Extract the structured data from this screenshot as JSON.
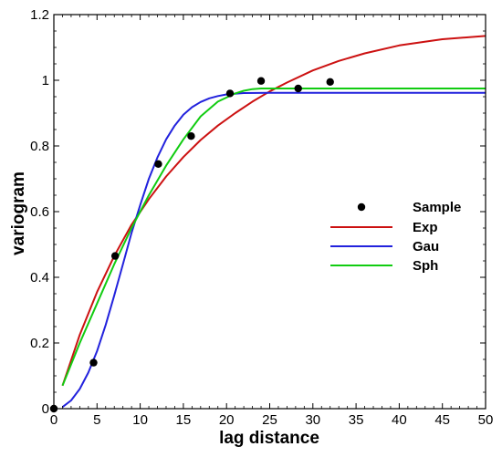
{
  "colors": {
    "Exp": "#cc1111",
    "Gau": "#2222dd",
    "Sph": "#11cc11",
    "Sample": "#000000"
  },
  "chart_data": {
    "type": "scatter",
    "xlabel": "lag distance",
    "ylabel": "variogram",
    "xlim": [
      0,
      50
    ],
    "ylim": [
      0,
      1.2
    ],
    "xticks": [
      "0",
      "5",
      "10",
      "15",
      "20",
      "25",
      "30",
      "35",
      "40",
      "45",
      "50"
    ],
    "yticks": [
      "0",
      "0.2",
      "0.4",
      "0.6",
      "0.8",
      "1",
      "1.2"
    ],
    "grid": false,
    "legend_position": "center-right",
    "series": [
      {
        "name": "Sample",
        "kind": "points",
        "x": [
          0,
          4.6,
          7.1,
          12.1,
          15.9,
          20.4,
          24.0,
          28.3,
          32.0
        ],
        "y": [
          0.0,
          0.14,
          0.465,
          0.745,
          0.83,
          0.96,
          0.998,
          0.975,
          0.995
        ]
      },
      {
        "name": "Exp",
        "kind": "line",
        "x": [
          1,
          3,
          5,
          7,
          9,
          11,
          13,
          15,
          17,
          19,
          21,
          23,
          25,
          27,
          30,
          33,
          36,
          40,
          45,
          50
        ],
        "y": [
          0.07,
          0.225,
          0.355,
          0.465,
          0.56,
          0.638,
          0.707,
          0.766,
          0.818,
          0.862,
          0.9,
          0.935,
          0.966,
          0.993,
          1.03,
          1.059,
          1.082,
          1.106,
          1.125,
          1.135
        ]
      },
      {
        "name": "Gau",
        "kind": "line",
        "x": [
          1,
          2,
          3,
          4,
          5,
          6,
          7,
          8,
          9,
          10,
          11,
          12,
          13,
          14,
          15,
          16,
          17,
          18,
          19,
          20,
          22,
          25,
          30,
          40,
          50
        ],
        "y": [
          0.005,
          0.025,
          0.06,
          0.11,
          0.175,
          0.255,
          0.345,
          0.44,
          0.535,
          0.62,
          0.7,
          0.765,
          0.82,
          0.862,
          0.895,
          0.918,
          0.934,
          0.945,
          0.952,
          0.957,
          0.961,
          0.962,
          0.962,
          0.962,
          0.962
        ]
      },
      {
        "name": "Sph",
        "kind": "line",
        "x": [
          1,
          3,
          5,
          7,
          9,
          11,
          13,
          15,
          17,
          19,
          21,
          22,
          23,
          24,
          30,
          40,
          50
        ],
        "y": [
          0.07,
          0.2,
          0.32,
          0.44,
          0.55,
          0.65,
          0.74,
          0.82,
          0.89,
          0.935,
          0.96,
          0.968,
          0.973,
          0.975,
          0.975,
          0.975,
          0.975
        ]
      }
    ]
  }
}
